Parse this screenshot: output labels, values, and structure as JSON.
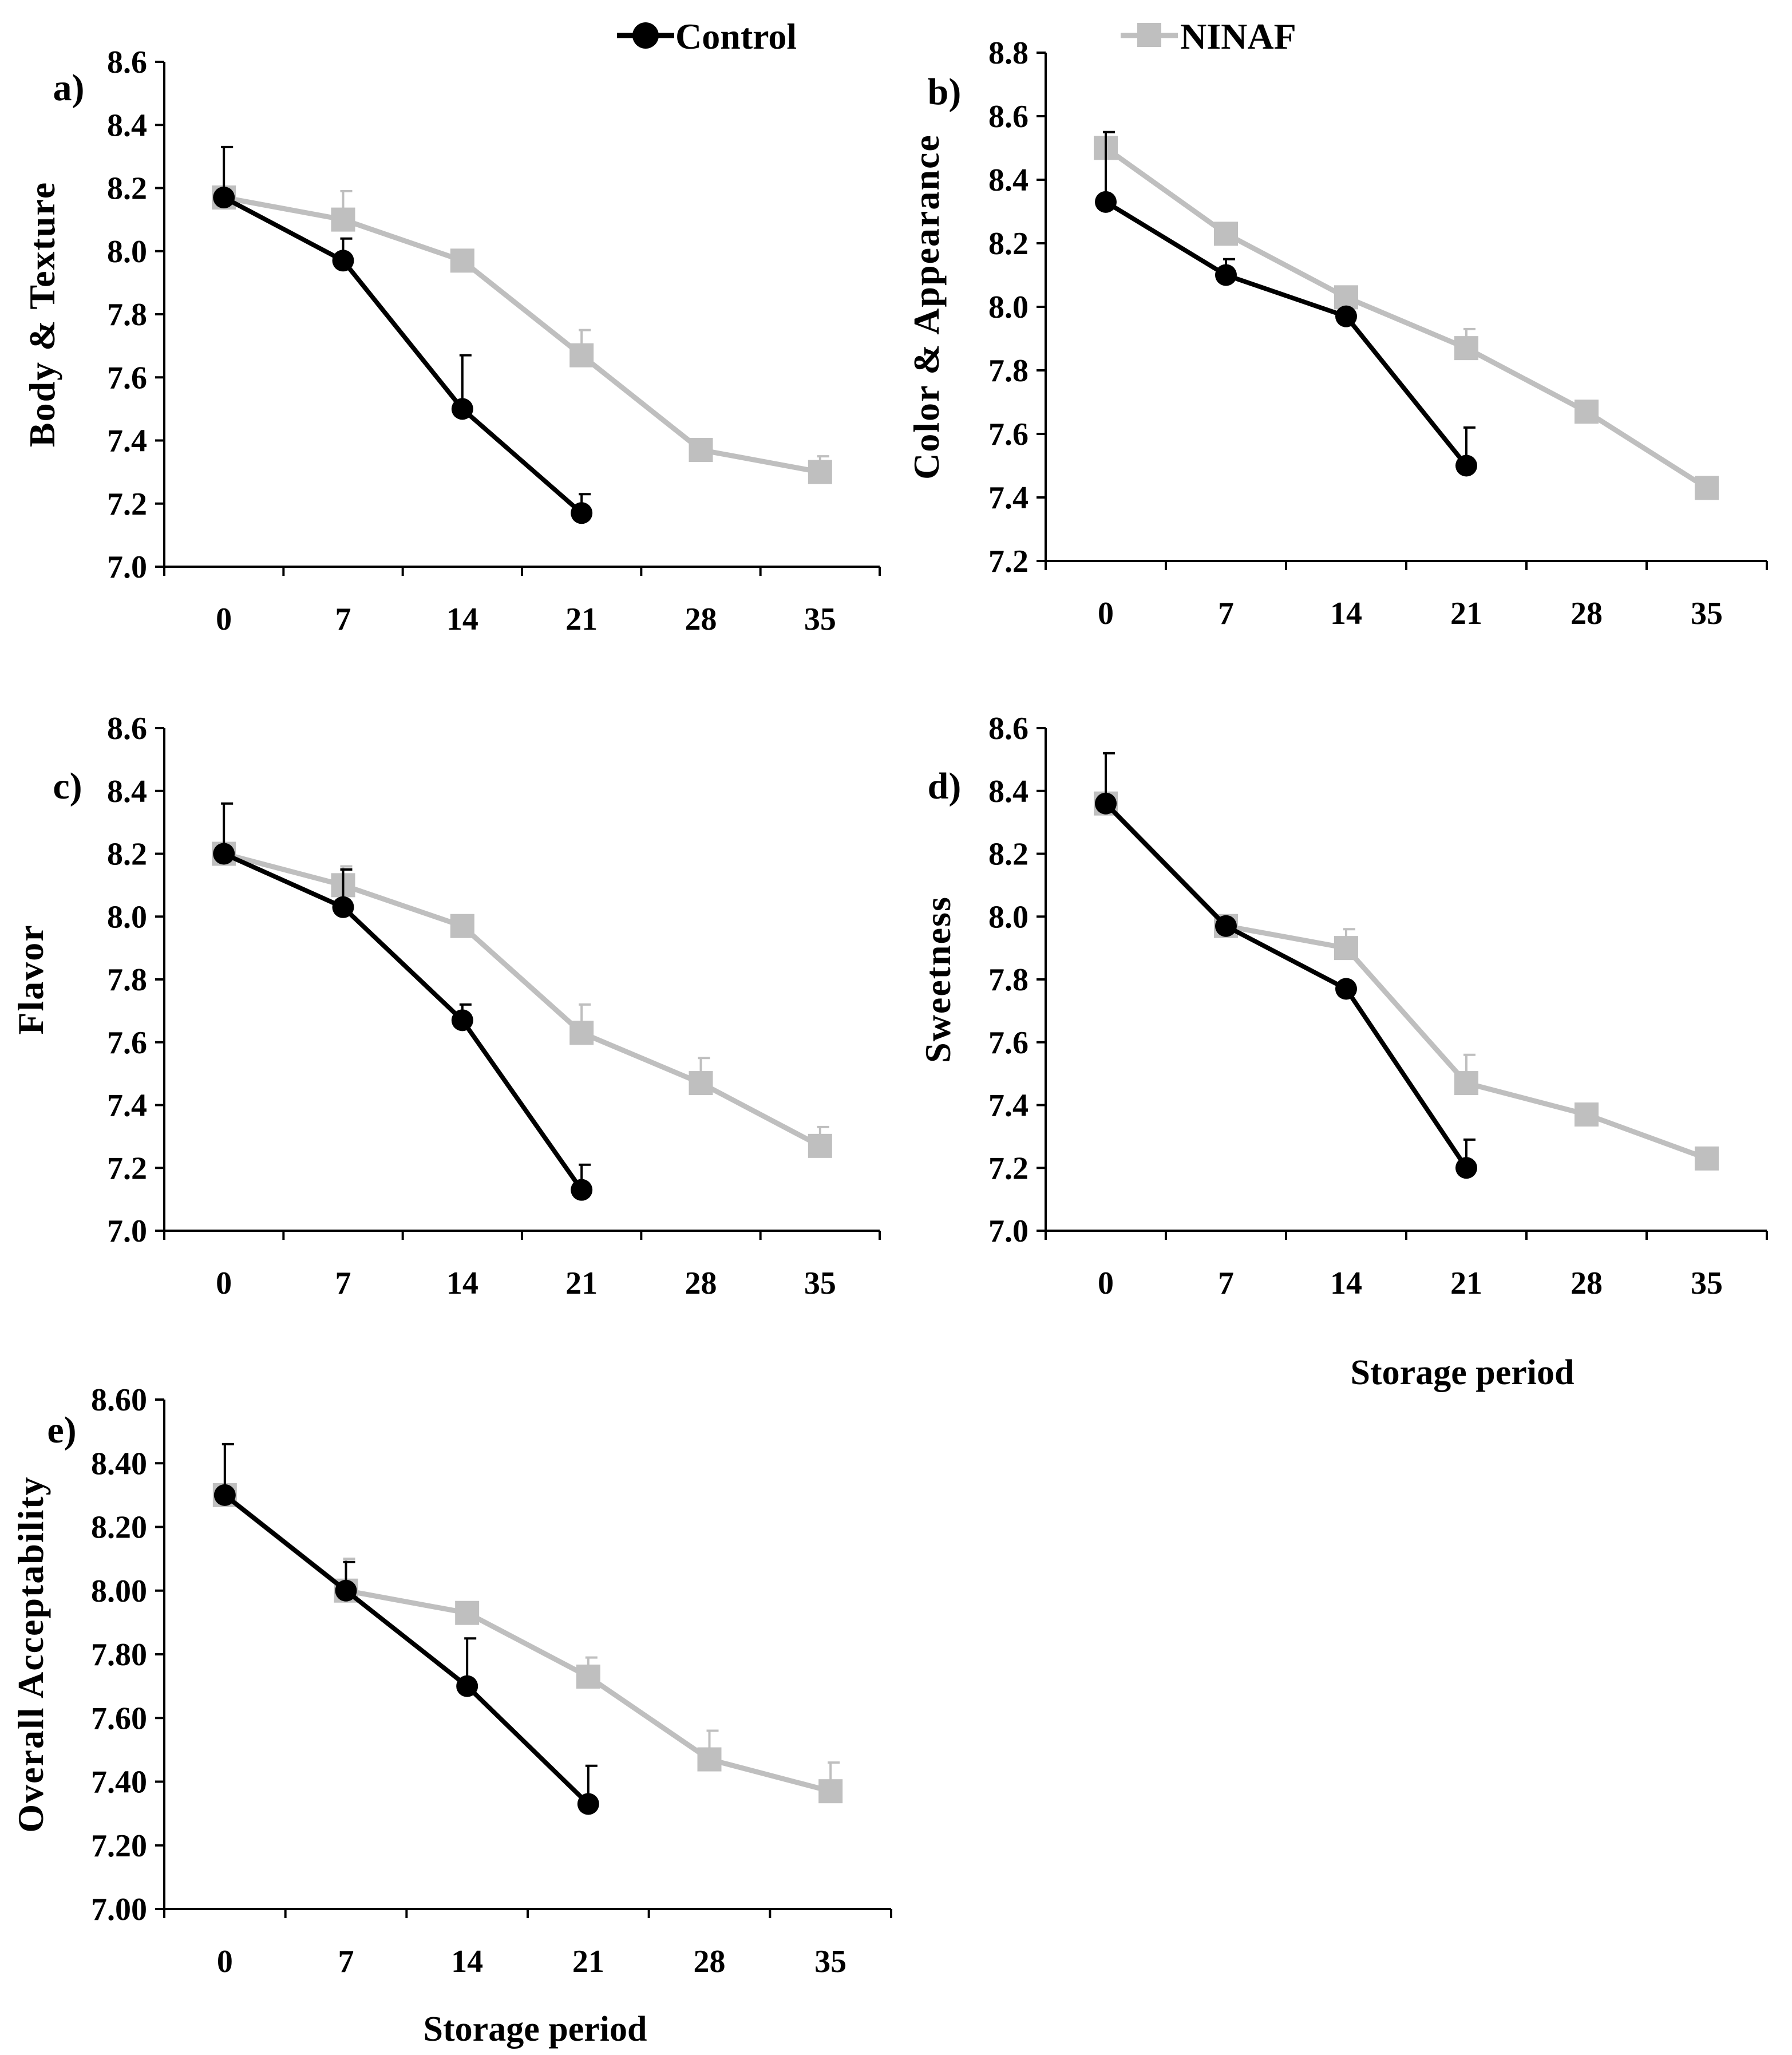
{
  "legend": [
    {
      "name": "Control",
      "color": "#000000",
      "marker": "circle"
    },
    {
      "name": "NINAF",
      "color": "#bfbfbf",
      "marker": "square"
    }
  ],
  "chart_data": [
    {
      "type": "line",
      "panel": "a)",
      "ylabel": "Body & Texture",
      "xlabel": "",
      "x": [
        0,
        7,
        14,
        21,
        28,
        35
      ],
      "x_tick_labels": [
        "0",
        "7",
        "14",
        "21",
        "28",
        "35"
      ],
      "ylim": [
        7.0,
        8.6
      ],
      "y_tick_labels": [
        "7.0",
        "7.2",
        "7.4",
        "7.6",
        "7.8",
        "8.0",
        "8.2",
        "8.4",
        "8.6"
      ],
      "series": [
        {
          "name": "Control",
          "values": [
            8.17,
            7.97,
            7.5,
            7.17,
            null,
            null
          ],
          "errors": [
            0.16,
            0.07,
            0.17,
            0.06,
            null,
            null
          ]
        },
        {
          "name": "NINAF",
          "values": [
            8.17,
            8.1,
            7.97,
            7.67,
            7.37,
            7.3
          ],
          "errors": [
            0.16,
            0.09,
            0.0,
            0.08,
            0.0,
            0.05
          ]
        }
      ]
    },
    {
      "type": "line",
      "panel": "b)",
      "ylabel": "Color & Appearance",
      "xlabel": "",
      "x": [
        0,
        7,
        14,
        21,
        28,
        35
      ],
      "x_tick_labels": [
        "0",
        "7",
        "14",
        "21",
        "28",
        "35"
      ],
      "ylim": [
        7.2,
        8.8
      ],
      "y_tick_labels": [
        "7.2",
        "7.4",
        "7.6",
        "7.8",
        "8.0",
        "8.2",
        "8.4",
        "8.6",
        "8.8"
      ],
      "series": [
        {
          "name": "Control",
          "values": [
            8.33,
            8.1,
            7.97,
            7.5,
            null,
            null
          ],
          "errors": [
            0.22,
            0.05,
            0.0,
            0.12,
            null,
            null
          ]
        },
        {
          "name": "NINAF",
          "values": [
            8.5,
            8.23,
            8.03,
            7.87,
            7.67,
            7.43
          ],
          "errors": [
            0.05,
            0.0,
            0.0,
            0.06,
            0.0,
            0.0
          ]
        }
      ]
    },
    {
      "type": "line",
      "panel": "c)",
      "ylabel": "Flavor",
      "xlabel": "",
      "x": [
        0,
        7,
        14,
        21,
        28,
        35
      ],
      "x_tick_labels": [
        "0",
        "7",
        "14",
        "21",
        "28",
        "35"
      ],
      "ylim": [
        7.0,
        8.6
      ],
      "y_tick_labels": [
        "7.0",
        "7.2",
        "7.4",
        "7.6",
        "7.8",
        "8.0",
        "8.2",
        "8.4",
        "8.6"
      ],
      "series": [
        {
          "name": "Control",
          "values": [
            8.2,
            8.03,
            7.67,
            7.13,
            null,
            null
          ],
          "errors": [
            0.16,
            0.12,
            0.05,
            0.08,
            null,
            null
          ]
        },
        {
          "name": "NINAF",
          "values": [
            8.2,
            8.1,
            7.97,
            7.63,
            7.47,
            7.27
          ],
          "errors": [
            0.16,
            0.06,
            0.0,
            0.09,
            0.08,
            0.06
          ]
        }
      ]
    },
    {
      "type": "line",
      "panel": "d)",
      "ylabel": "Sweetness",
      "xlabel": "Storage period",
      "x": [
        0,
        7,
        14,
        21,
        28,
        35
      ],
      "x_tick_labels": [
        "0",
        "7",
        "14",
        "21",
        "28",
        "35"
      ],
      "ylim": [
        7.0,
        8.6
      ],
      "y_tick_labels": [
        "7.0",
        "7.2",
        "7.4",
        "7.6",
        "7.8",
        "8.0",
        "8.2",
        "8.4",
        "8.6"
      ],
      "series": [
        {
          "name": "Control",
          "values": [
            8.36,
            7.97,
            7.77,
            7.2,
            null,
            null
          ],
          "errors": [
            0.16,
            0.0,
            0.0,
            0.09,
            null,
            null
          ]
        },
        {
          "name": "NINAF",
          "values": [
            8.36,
            7.97,
            7.9,
            7.47,
            7.37,
            7.23
          ],
          "errors": [
            0.16,
            0.0,
            0.06,
            0.09,
            0.0,
            0.0
          ]
        }
      ]
    },
    {
      "type": "line",
      "panel": "e)",
      "ylabel": "Overall Acceptability",
      "xlabel": "Storage period",
      "x": [
        0,
        7,
        14,
        21,
        28,
        35
      ],
      "x_tick_labels": [
        "0",
        "7",
        "14",
        "21",
        "28",
        "35"
      ],
      "ylim": [
        7.0,
        8.6
      ],
      "y_tick_labels": [
        "7.00",
        "7.20",
        "7.40",
        "7.60",
        "7.80",
        "8.00",
        "8.20",
        "8.40",
        "8.60"
      ],
      "series": [
        {
          "name": "Control",
          "values": [
            8.3,
            8.0,
            7.7,
            7.33,
            null,
            null
          ],
          "errors": [
            0.16,
            0.09,
            0.15,
            0.12,
            null,
            null
          ]
        },
        {
          "name": "NINAF",
          "values": [
            8.3,
            8.0,
            7.93,
            7.73,
            7.47,
            7.37
          ],
          "errors": [
            0.16,
            0.1,
            0.0,
            0.06,
            0.09,
            0.09
          ]
        }
      ]
    }
  ]
}
